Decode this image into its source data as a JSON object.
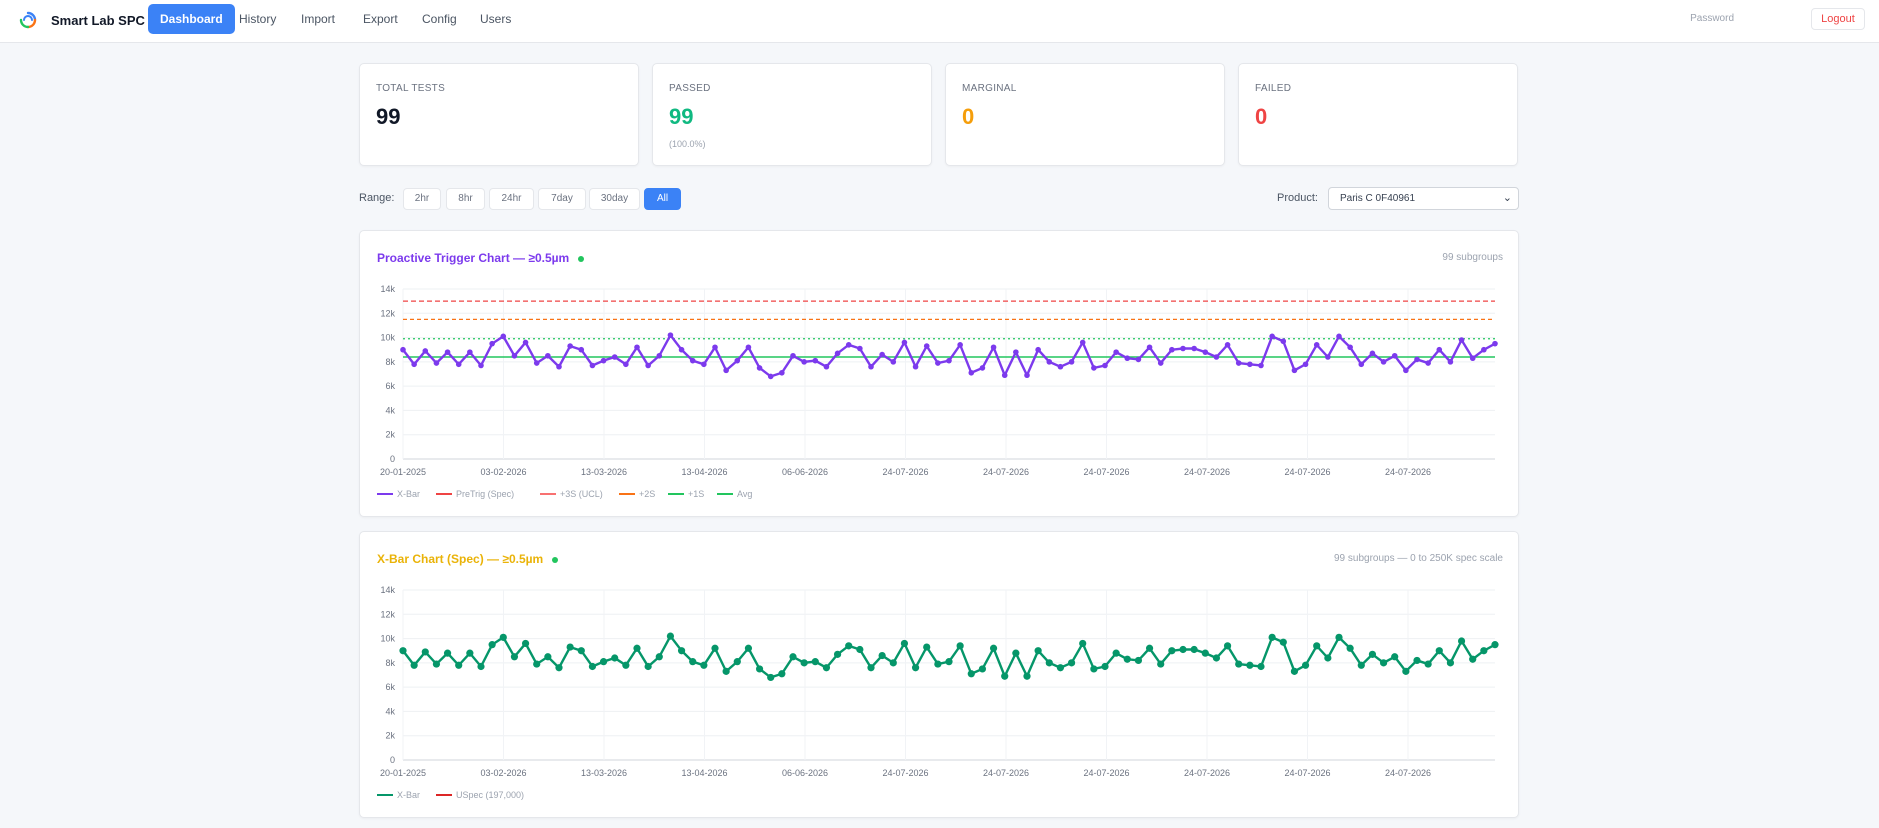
{
  "nav": {
    "brand": "Smart Lab SPC",
    "links": [
      "Dashboard",
      "History",
      "Import",
      "Export",
      "Config",
      "Users"
    ],
    "active": "Dashboard",
    "password_label": "Password",
    "logout_label": "Logout"
  },
  "stats": [
    {
      "label": "TOTAL TESTS",
      "value": "99",
      "sub": "",
      "color": "#111827"
    },
    {
      "label": "PASSED",
      "value": "99",
      "sub": "(100.0%)",
      "color": "#10b981"
    },
    {
      "label": "MARGINAL",
      "value": "0",
      "sub": "",
      "color": "#f59e0b"
    },
    {
      "label": "FAILED",
      "value": "0",
      "sub": "",
      "color": "#ef4444"
    }
  ],
  "range": {
    "label": "Range:",
    "options": [
      "2hr",
      "8hr",
      "24hr",
      "7day",
      "30day",
      "All"
    ],
    "active": "All"
  },
  "product": {
    "label": "Product:",
    "value": "Paris C 0F40961"
  },
  "colors": {
    "accent": "#3b82f6",
    "purple": "#7c3aed",
    "green_series": "#059669",
    "title2": "#eab308"
  },
  "chart_data": [
    {
      "type": "line",
      "title": "Proactive Trigger Chart — ≥0.5µm",
      "meta": "99 subgroups",
      "ylim": [
        0,
        14000
      ],
      "y_ticks": [
        "0",
        "2k",
        "4k",
        "6k",
        "8k",
        "10k",
        "12k",
        "14k"
      ],
      "x_tick_labels": [
        "20-01-2025",
        "03-02-2026",
        "13-03-2026",
        "13-04-2026",
        "06-06-2026",
        "24-07-2026",
        "24-07-2026",
        "24-07-2026",
        "24-07-2026",
        "24-07-2026",
        "24-07-2026"
      ],
      "grid": true,
      "legend_position": "bottom-left",
      "legend": [
        "X-Bar",
        "PreTrig (Spec)",
        "+3S (UCL)",
        "+2S",
        "+1S",
        "Avg"
      ],
      "series": [
        {
          "name": "X-Bar",
          "color": "#7c3aed",
          "values": [
            9000,
            7800,
            8900,
            7900,
            8800,
            7800,
            8800,
            7700,
            9500,
            10100,
            8500,
            9600,
            7900,
            8500,
            7600,
            9300,
            9000,
            7700,
            8100,
            8400,
            7800,
            9200,
            7700,
            8500,
            10200,
            9000,
            8100,
            7800,
            9200,
            7300,
            8100,
            9200,
            7500,
            6800,
            7100,
            8500,
            8000,
            8100,
            7600,
            8700,
            9400,
            9100,
            7600,
            8600,
            8000,
            9600,
            7600,
            9300,
            7900,
            8100,
            9400,
            7100,
            7500,
            9200,
            6900,
            8800,
            6900,
            9000,
            8000,
            7600,
            8000,
            9600,
            7500,
            7700,
            8800,
            8300,
            8200,
            9200,
            7900,
            9000,
            9100,
            9100,
            8800,
            8400,
            9400,
            7900,
            7800,
            7700,
            10100,
            9700,
            7300,
            7800,
            9400,
            8400,
            10100,
            9200,
            7800,
            8700,
            8000,
            8500,
            7300,
            8200,
            7900,
            9000,
            8000,
            9800,
            8300,
            9000,
            9500
          ]
        },
        {
          "name": "PreTrig (Spec)",
          "color": "#ef4444",
          "values": [
            13000
          ]
        },
        {
          "name": "+3S (UCL)",
          "color": "#f97316",
          "values": [
            11500
          ]
        },
        {
          "name": "+2S",
          "color": "#22c55e",
          "values": [
            9900
          ]
        },
        {
          "name": "Avg",
          "color": "#22c55e",
          "values": [
            8400
          ]
        }
      ]
    },
    {
      "type": "line",
      "title": "X-Bar Chart (Spec) — ≥0.5µm",
      "meta": "99 subgroups — 0 to 250K spec scale",
      "ylim": [
        0,
        14000
      ],
      "y_ticks": [
        "0",
        "2k",
        "4k",
        "6k",
        "8k",
        "10k",
        "12k",
        "14k"
      ],
      "x_tick_labels": [
        "20-01-2025",
        "03-02-2026",
        "13-03-2026",
        "13-04-2026",
        "06-06-2026",
        "24-07-2026",
        "24-07-2026",
        "24-07-2026",
        "24-07-2026",
        "24-07-2026",
        "24-07-2026"
      ],
      "grid": true,
      "legend_position": "bottom-left",
      "legend": [
        "X-Bar",
        "USpec (197,000)"
      ],
      "series": [
        {
          "name": "X-Bar",
          "color": "#059669",
          "values": [
            9000,
            7800,
            8900,
            7900,
            8800,
            7800,
            8800,
            7700,
            9500,
            10100,
            8500,
            9600,
            7900,
            8500,
            7600,
            9300,
            9000,
            7700,
            8100,
            8400,
            7800,
            9200,
            7700,
            8500,
            10200,
            9000,
            8100,
            7800,
            9200,
            7300,
            8100,
            9200,
            7500,
            6800,
            7100,
            8500,
            8000,
            8100,
            7600,
            8700,
            9400,
            9100,
            7600,
            8600,
            8000,
            9600,
            7600,
            9300,
            7900,
            8100,
            9400,
            7100,
            7500,
            9200,
            6900,
            8800,
            6900,
            9000,
            8000,
            7600,
            8000,
            9600,
            7500,
            7700,
            8800,
            8300,
            8200,
            9200,
            7900,
            9000,
            9100,
            9100,
            8800,
            8400,
            9400,
            7900,
            7800,
            7700,
            10100,
            9700,
            7300,
            7800,
            9400,
            8400,
            10100,
            9200,
            7800,
            8700,
            8000,
            8500,
            7300,
            8200,
            7900,
            9000,
            8000,
            9800,
            8300,
            9000,
            9500
          ]
        }
      ]
    }
  ]
}
